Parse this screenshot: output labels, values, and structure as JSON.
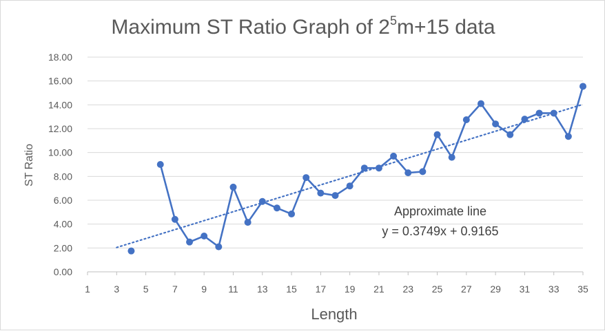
{
  "chart_data": {
    "type": "line",
    "title": {
      "base": "Maximum ST Ratio Graph of 2",
      "superscript": "5",
      "rest": "m+15 data"
    },
    "xlabel": "Length",
    "ylabel": "ST Ratio",
    "xlim": [
      1,
      35
    ],
    "ylim": [
      0,
      18
    ],
    "xticks": [
      "1",
      "3",
      "5",
      "7",
      "9",
      "11",
      "13",
      "15",
      "17",
      "19",
      "21",
      "23",
      "25",
      "27",
      "29",
      "31",
      "33",
      "35"
    ],
    "yticks": [
      "0.00",
      "2.00",
      "4.00",
      "6.00",
      "8.00",
      "10.00",
      "12.00",
      "14.00",
      "16.00",
      "18.00"
    ],
    "grid": "horizontal",
    "series": [
      {
        "color": "#4472c4",
        "points": [
          {
            "x": 4,
            "y": 1.75
          },
          {
            "x": 6,
            "y": 9.0
          },
          {
            "x": 7,
            "y": 4.4
          },
          {
            "x": 8,
            "y": 2.5
          },
          {
            "x": 9,
            "y": 3.0
          },
          {
            "x": 10,
            "y": 2.1
          },
          {
            "x": 11,
            "y": 7.1
          },
          {
            "x": 12,
            "y": 4.15
          },
          {
            "x": 13,
            "y": 5.9
          },
          {
            "x": 14,
            "y": 5.35
          },
          {
            "x": 15,
            "y": 4.85
          },
          {
            "x": 16,
            "y": 7.9
          },
          {
            "x": 17,
            "y": 6.6
          },
          {
            "x": 18,
            "y": 6.4
          },
          {
            "x": 19,
            "y": 7.2
          },
          {
            "x": 20,
            "y": 8.7
          },
          {
            "x": 21,
            "y": 8.7
          },
          {
            "x": 22,
            "y": 9.7
          },
          {
            "x": 23,
            "y": 8.3
          },
          {
            "x": 24,
            "y": 8.4
          },
          {
            "x": 25,
            "y": 11.5
          },
          {
            "x": 26,
            "y": 9.6
          },
          {
            "x": 27,
            "y": 12.75
          },
          {
            "x": 28,
            "y": 14.1
          },
          {
            "x": 29,
            "y": 12.4
          },
          {
            "x": 30,
            "y": 11.5
          },
          {
            "x": 31,
            "y": 12.8
          },
          {
            "x": 32,
            "y": 13.3
          },
          {
            "x": 33,
            "y": 13.3
          },
          {
            "x": 34,
            "y": 11.35
          },
          {
            "x": 35,
            "y": 15.55
          }
        ]
      }
    ],
    "trendline": {
      "type": "linear",
      "slope": 0.3749,
      "intercept": 0.9165,
      "x_from": 3,
      "x_to": 35,
      "style": "dotted",
      "color": "#4472c4"
    },
    "annotation": {
      "line1": "Approximate line",
      "line2": "y = 0.3749x + 0.9165"
    }
  }
}
